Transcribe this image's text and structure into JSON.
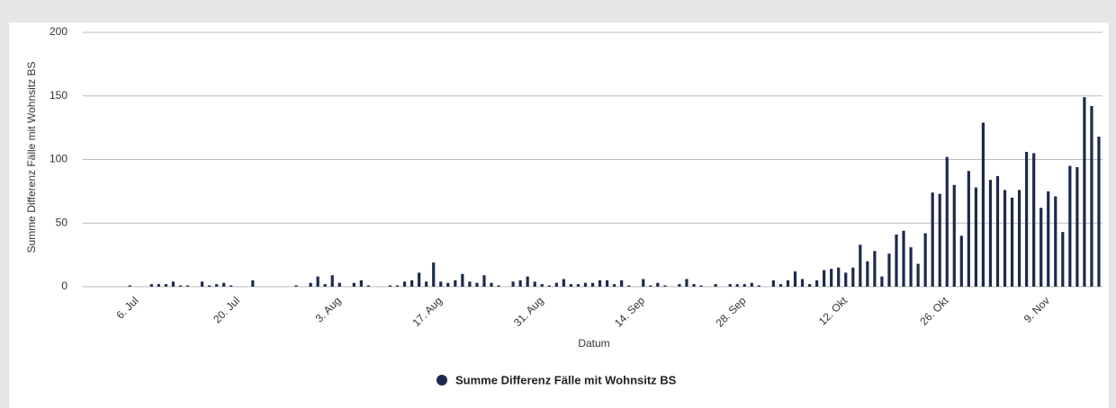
{
  "chart_data": {
    "type": "bar",
    "y_label": "Summe Differenz Fälle mit Wohnsitz BS",
    "x_label": "Datum",
    "categories": [
      null,
      null,
      null,
      null,
      null,
      null,
      null,
      "6. Jul",
      null,
      null,
      null,
      null,
      null,
      null,
      null,
      null,
      null,
      null,
      null,
      null,
      null,
      "20. Jul",
      null,
      null,
      null,
      null,
      null,
      null,
      null,
      null,
      null,
      null,
      null,
      null,
      null,
      "3. Aug",
      null,
      null,
      null,
      null,
      null,
      null,
      null,
      null,
      null,
      null,
      null,
      null,
      null,
      "17. Aug",
      null,
      null,
      null,
      null,
      null,
      null,
      null,
      null,
      null,
      null,
      null,
      null,
      null,
      "31. Aug",
      null,
      null,
      null,
      null,
      null,
      null,
      null,
      null,
      null,
      null,
      null,
      null,
      null,
      "14. Sep",
      null,
      null,
      null,
      null,
      null,
      null,
      null,
      null,
      null,
      null,
      null,
      null,
      null,
      "28. Sep",
      null,
      null,
      null,
      null,
      null,
      null,
      null,
      null,
      null,
      null,
      null,
      null,
      null,
      "12. Okt",
      null,
      null,
      null,
      null,
      null,
      null,
      null,
      null,
      null,
      null,
      null,
      null,
      null,
      "26. Okt",
      null,
      null,
      null,
      null,
      null,
      null,
      null,
      null,
      null,
      null,
      null,
      null,
      null,
      "9. Nov",
      null,
      null,
      null,
      null,
      null,
      null,
      null
    ],
    "series": [
      {
        "name": "Summe Differenz Fälle mit Wohnsitz BS",
        "color": "#1c2a4e",
        "values": [
          0,
          0,
          0,
          0,
          0,
          0,
          1,
          0,
          0,
          2,
          2,
          2,
          4,
          1,
          1,
          0,
          4,
          1,
          2,
          3,
          1,
          0,
          0,
          5,
          0,
          0,
          0,
          0,
          0,
          1,
          0,
          3,
          8,
          2,
          9,
          3,
          0,
          3,
          5,
          1,
          0,
          0,
          1,
          1,
          4,
          5,
          11,
          4,
          19,
          4,
          3,
          5,
          10,
          4,
          3,
          9,
          3,
          1,
          0,
          4,
          5,
          8,
          4,
          2,
          1,
          3,
          6,
          2,
          2,
          3,
          3,
          5,
          5,
          2,
          5,
          1,
          0,
          6,
          1,
          3,
          1,
          0,
          2,
          6,
          2,
          1,
          0,
          2,
          0,
          2,
          2,
          2,
          3,
          1,
          0,
          5,
          2,
          5,
          12,
          6,
          2,
          5,
          13,
          14,
          15,
          11,
          15,
          33,
          20,
          28,
          8,
          26,
          41,
          44,
          31,
          18,
          42,
          74,
          73,
          102,
          80,
          40,
          91,
          78,
          129,
          84,
          87,
          76,
          70,
          76,
          106,
          105,
          62,
          75,
          71,
          43,
          95,
          94,
          149,
          142,
          118
        ]
      }
    ],
    "ylim": [
      0,
      200
    ],
    "yticks": [
      0,
      50,
      100,
      150,
      200
    ],
    "grid": true,
    "legend": "bottom"
  }
}
